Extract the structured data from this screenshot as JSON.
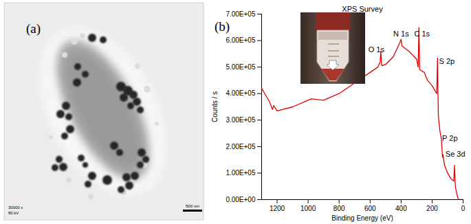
{
  "image_panel": {
    "label": "(a)",
    "magnification": "30000 x",
    "voltage": "80 kV",
    "scale_bar": "500 nm"
  },
  "chart_data": {
    "type": "line",
    "panel_label": "(b)",
    "title": "XPS Survey",
    "x_label": "Binding Energy (eV)",
    "y_label": "Counts / s",
    "x": [
      1300,
      1250,
      1230,
      1222,
      1200,
      1100,
      1000,
      980,
      900,
      800,
      700,
      600,
      550,
      535,
      531,
      525,
      500,
      450,
      410,
      400,
      395,
      350,
      300,
      290,
      285,
      280,
      250,
      230,
      200,
      170,
      165,
      160,
      150,
      140,
      133,
      130,
      120,
      100,
      80,
      60,
      55,
      50,
      40,
      30,
      0
    ],
    "series": [
      {
        "color": "#e00000",
        "values": [
          420000,
          370000,
          340000,
          355000,
          335000,
          350000,
          375000,
          380000,
          375000,
          400000,
          440000,
          480000,
          500000,
          520000,
          560000,
          505000,
          510000,
          540000,
          590000,
          605000,
          580000,
          560000,
          530000,
          500000,
          650000,
          490000,
          480000,
          450000,
          430000,
          400000,
          535000,
          320000,
          260000,
          230000,
          160000,
          170000,
          130000,
          100000,
          80000,
          70000,
          130000,
          50000,
          20000,
          0,
          0
        ]
      }
    ],
    "xlim": [
      1300,
      0
    ],
    "xticks": [
      1200,
      1000,
      800,
      600,
      400,
      200,
      0
    ],
    "ylim": [
      0,
      700000
    ],
    "yticks": [
      {
        "value": 0,
        "label": "0.00E+00"
      },
      {
        "value": 100000,
        "label": "1.00E+05"
      },
      {
        "value": 200000,
        "label": "2.00E+05"
      },
      {
        "value": 300000,
        "label": "3.00E+05"
      },
      {
        "value": 400000,
        "label": "4.00E+05"
      },
      {
        "value": 500000,
        "label": "5.00E+05"
      },
      {
        "value": 600000,
        "label": "6.00E+05"
      },
      {
        "value": 700000,
        "label": "7.00E+05"
      }
    ],
    "annotations": [
      {
        "text": "O 1s",
        "x": 560,
        "y": 565000
      },
      {
        "text": "N 1s",
        "x": 400,
        "y": 625000
      },
      {
        "text": "C 1s",
        "x": 265,
        "y": 625000
      },
      {
        "text": "S 2p",
        "x": 105,
        "y": 520000
      },
      {
        "text": "P 2p",
        "x": 85,
        "y": 230000
      },
      {
        "text": "Se 3d",
        "x": 50,
        "y": 170000
      }
    ]
  }
}
